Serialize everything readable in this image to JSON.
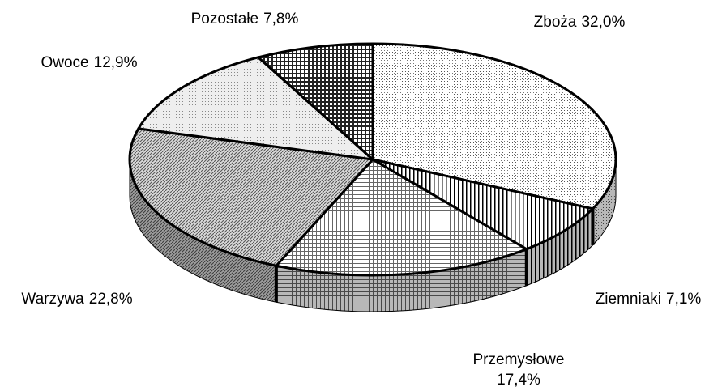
{
  "chart_data": {
    "type": "pie3d",
    "categories": [
      "Zboża",
      "Ziemniaki",
      "Przemysłowe",
      "Warzywa",
      "Owoce",
      "Pozostałe"
    ],
    "values": [
      32.0,
      7.1,
      17.4,
      22.8,
      12.9,
      7.8
    ],
    "value_labels": [
      "32,0%",
      "7,1%",
      "17,4%",
      "22,8%",
      "12,9%",
      "7,8%"
    ]
  }
}
